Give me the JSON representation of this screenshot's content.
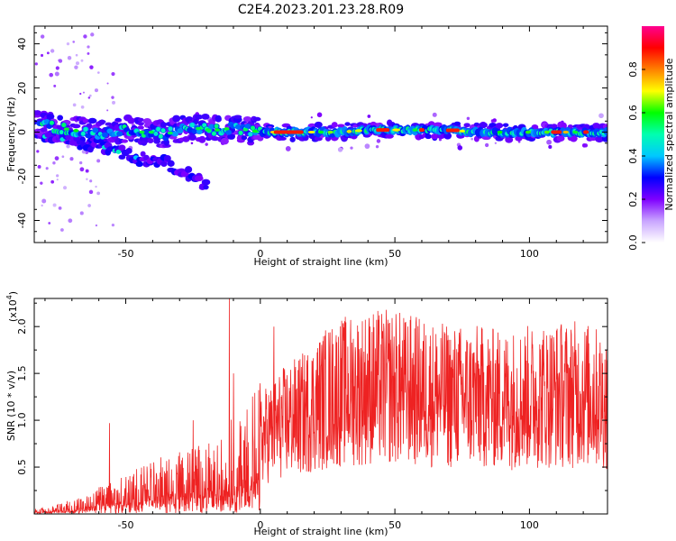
{
  "figure": {
    "title": "C2E4.2023.201.23.28.R09"
  },
  "chart_data": [
    {
      "type": "heatmap",
      "title": "C2E4.2023.201.23.28.R09",
      "xlabel": "Height of straight line (km)",
      "ylabel": "Frequency (Hz)",
      "xlim": [
        -84,
        129
      ],
      "ylim": [
        -50,
        48
      ],
      "xticks": [
        -50,
        0,
        50,
        100
      ],
      "yticks": [
        -40,
        -20,
        0,
        20,
        40
      ],
      "colorbar": {
        "label": "Normalized spectral amplitude",
        "range": [
          0,
          1
        ],
        "ticks": [
          "0.0",
          "0.2",
          "0.4",
          "0.6",
          "0.8"
        ],
        "colors": [
          "#ffffff",
          "#c9a5ff",
          "#7f00ff",
          "#0000ff",
          "#00c8ff",
          "#00ffb0",
          "#00ff00",
          "#ffff00",
          "#ff8000",
          "#ff0000",
          "#ff0090"
        ]
      },
      "ridge": {
        "x": [
          -80,
          -75,
          -70,
          -65,
          -60,
          -55,
          -50,
          -45,
          -40,
          -35,
          -30,
          -25,
          -20,
          -15,
          -10,
          -5,
          0,
          5,
          10,
          20,
          30,
          40,
          50,
          60,
          70,
          80,
          90,
          100,
          110,
          120,
          129
        ],
        "y": [
          3,
          2,
          1,
          0,
          -1,
          0,
          1,
          0,
          0,
          -1,
          1,
          2,
          1,
          1,
          2,
          1,
          0,
          0,
          0,
          0,
          0,
          1,
          1,
          1,
          1,
          0,
          0,
          0,
          0,
          0,
          0
        ]
      },
      "lower_branch": {
        "x": [
          -80,
          -70,
          -60,
          -55,
          -50,
          -45,
          -40,
          -35,
          -30,
          -25,
          -20
        ],
        "y": [
          -2,
          -4,
          -6,
          -8,
          -10,
          -12,
          -12,
          -14,
          -17,
          -20,
          -25
        ]
      }
    },
    {
      "type": "line",
      "xlabel": "Height of straight line (km)",
      "ylabel": "SNR (10 * v/v)",
      "y_multiplier_label": "(x10",
      "y_multiplier_exponent": "4",
      "y_multiplier_suffix": ")",
      "xlim": [
        -84,
        129
      ],
      "ylim": [
        0,
        2.3
      ],
      "xticks": [
        -50,
        0,
        50,
        100
      ],
      "yticks": [
        "0.5",
        "1.0",
        "1.5",
        "2.0"
      ],
      "line_color": "#ee2222",
      "envelope": {
        "x": [
          -84,
          -75,
          -65,
          -55,
          -45,
          -35,
          -25,
          -15,
          -10,
          -5,
          0,
          5,
          10,
          15,
          20,
          25,
          30,
          40,
          50,
          60,
          70,
          80,
          90,
          100,
          110,
          120,
          129
        ],
        "y": [
          0.03,
          0.06,
          0.12,
          0.2,
          0.28,
          0.35,
          0.4,
          0.45,
          0.6,
          0.7,
          0.8,
          0.9,
          1.0,
          1.05,
          1.15,
          1.25,
          1.3,
          1.35,
          1.35,
          1.3,
          1.25,
          1.25,
          1.22,
          1.25,
          1.28,
          1.28,
          1.2
        ]
      },
      "peaks": [
        {
          "x": -56,
          "y": 0.97
        },
        {
          "x": -25,
          "y": 1.0
        },
        {
          "x": -11.5,
          "y": 2.3
        },
        {
          "x": -10,
          "y": 1.5
        },
        {
          "x": 5,
          "y": 2.0
        },
        {
          "x": 31,
          "y": 1.85
        },
        {
          "x": 54,
          "y": 2.05
        },
        {
          "x": 74,
          "y": 1.8
        },
        {
          "x": 124,
          "y": 1.7
        }
      ]
    }
  ]
}
